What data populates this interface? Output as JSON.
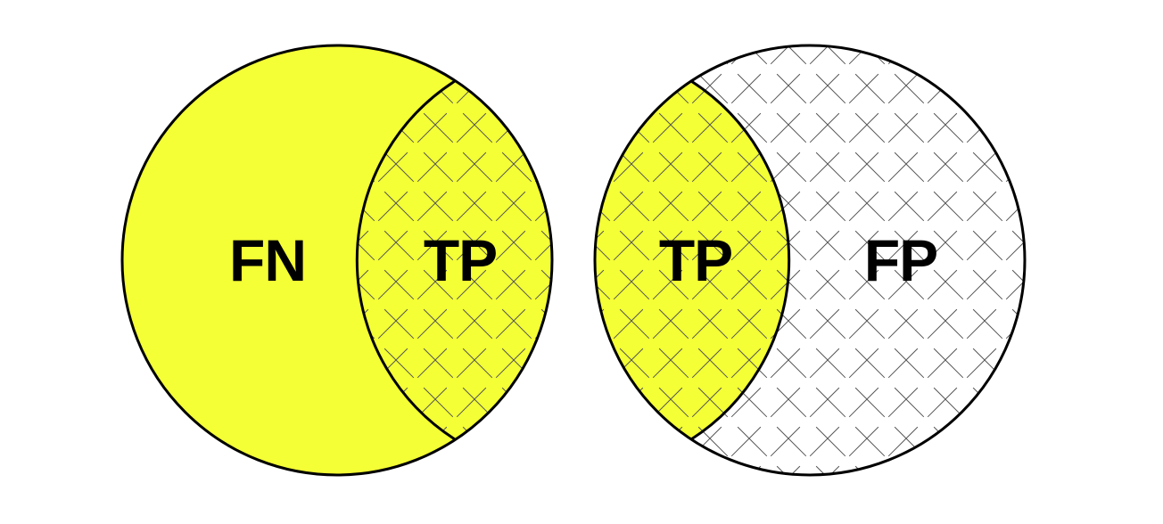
{
  "colors": {
    "highlight": "#f4ff35",
    "outline": "#000000",
    "hatch": "#555555",
    "background": "#ffffff"
  },
  "left_diagram": {
    "regions": [
      {
        "label": "FN",
        "fill": "highlight",
        "hatched": false
      },
      {
        "label": "TP",
        "fill": "highlight",
        "hatched": true
      }
    ]
  },
  "right_diagram": {
    "regions": [
      {
        "label": "TP",
        "fill": "highlight",
        "hatched": true
      },
      {
        "label": "FP",
        "fill": "background",
        "hatched": true
      }
    ]
  }
}
